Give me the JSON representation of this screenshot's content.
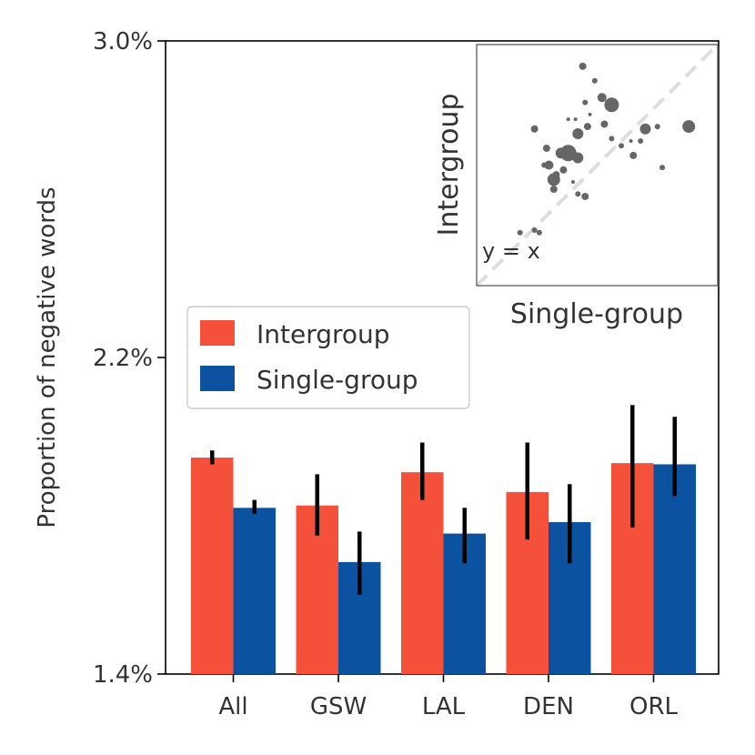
{
  "chart_data": [
    {
      "type": "bar",
      "title": "",
      "xlabel": "",
      "ylabel": "Proportion of negative words",
      "ylim": [
        1.4,
        3.0
      ],
      "yticks": [
        1.4,
        2.2,
        3.0
      ],
      "ytick_labels": [
        "1.4%",
        "2.2%",
        "3.0%"
      ],
      "categories": [
        "All",
        "GSW",
        "LAL",
        "DEN",
        "ORL"
      ],
      "series": [
        {
          "name": "Intergroup",
          "color": "#f4503a",
          "values": [
            1.947,
            1.826,
            1.91,
            1.86,
            1.933
          ],
          "error_low": [
            1.93,
            1.75,
            1.84,
            1.74,
            1.77
          ],
          "error_high": [
            1.965,
            1.905,
            1.985,
            1.985,
            2.08
          ]
        },
        {
          "name": "Single-group",
          "color": "#0b53a0",
          "values": [
            1.82,
            1.683,
            1.755,
            1.784,
            1.93
          ],
          "error_low": [
            1.805,
            1.6,
            1.68,
            1.68,
            1.85
          ],
          "error_high": [
            1.84,
            1.76,
            1.82,
            1.88,
            2.05
          ]
        }
      ],
      "legend": {
        "position": "center-left",
        "entries": [
          "Intergroup",
          "Single-group"
        ]
      },
      "grid": false
    },
    {
      "type": "scatter",
      "title": "",
      "xlabel": "Single-group",
      "ylabel": "Intergroup",
      "annotation": "y = x",
      "reference_line": "y = x",
      "point_color": "#666666",
      "ref_line_color": "#dddddd",
      "xlim": [
        0,
        1
      ],
      "ylim": [
        0,
        1
      ],
      "points": [
        {
          "x": 0.44,
          "y": 0.91,
          "size": 4
        },
        {
          "x": 0.49,
          "y": 0.85,
          "size": 3
        },
        {
          "x": 0.45,
          "y": 0.76,
          "size": 3
        },
        {
          "x": 0.56,
          "y": 0.75,
          "size": 8
        },
        {
          "x": 0.52,
          "y": 0.78,
          "size": 5
        },
        {
          "x": 0.38,
          "y": 0.69,
          "size": 2
        },
        {
          "x": 0.46,
          "y": 0.66,
          "size": 4
        },
        {
          "x": 0.53,
          "y": 0.67,
          "size": 4
        },
        {
          "x": 0.42,
          "y": 0.63,
          "size": 6
        },
        {
          "x": 0.7,
          "y": 0.65,
          "size": 6
        },
        {
          "x": 0.75,
          "y": 0.66,
          "size": 3
        },
        {
          "x": 0.24,
          "y": 0.65,
          "size": 4
        },
        {
          "x": 0.29,
          "y": 0.57,
          "size": 4
        },
        {
          "x": 0.35,
          "y": 0.55,
          "size": 6
        },
        {
          "x": 0.38,
          "y": 0.55,
          "size": 9
        },
        {
          "x": 0.42,
          "y": 0.53,
          "size": 6
        },
        {
          "x": 0.36,
          "y": 0.48,
          "size": 4
        },
        {
          "x": 0.56,
          "y": 0.61,
          "size": 3
        },
        {
          "x": 0.6,
          "y": 0.58,
          "size": 3
        },
        {
          "x": 0.65,
          "y": 0.54,
          "size": 4
        },
        {
          "x": 0.68,
          "y": 0.6,
          "size": 3
        },
        {
          "x": 0.3,
          "y": 0.5,
          "size": 5
        },
        {
          "x": 0.33,
          "y": 0.46,
          "size": 4
        },
        {
          "x": 0.32,
          "y": 0.44,
          "size": 7
        },
        {
          "x": 0.32,
          "y": 0.4,
          "size": 4
        },
        {
          "x": 0.28,
          "y": 0.5,
          "size": 3
        },
        {
          "x": 0.42,
          "y": 0.38,
          "size": 3
        },
        {
          "x": 0.45,
          "y": 0.37,
          "size": 4
        },
        {
          "x": 0.18,
          "y": 0.22,
          "size": 3
        },
        {
          "x": 0.26,
          "y": 0.22,
          "size": 3
        },
        {
          "x": 0.24,
          "y": 0.23,
          "size": 3
        },
        {
          "x": 0.88,
          "y": 0.66,
          "size": 7
        },
        {
          "x": 0.77,
          "y": 0.49,
          "size": 3
        },
        {
          "x": 0.64,
          "y": 0.6,
          "size": 2
        },
        {
          "x": 0.4,
          "y": 0.43,
          "size": 2
        },
        {
          "x": 0.47,
          "y": 0.71,
          "size": 2
        },
        {
          "x": 0.41,
          "y": 0.69,
          "size": 2
        }
      ]
    }
  ]
}
